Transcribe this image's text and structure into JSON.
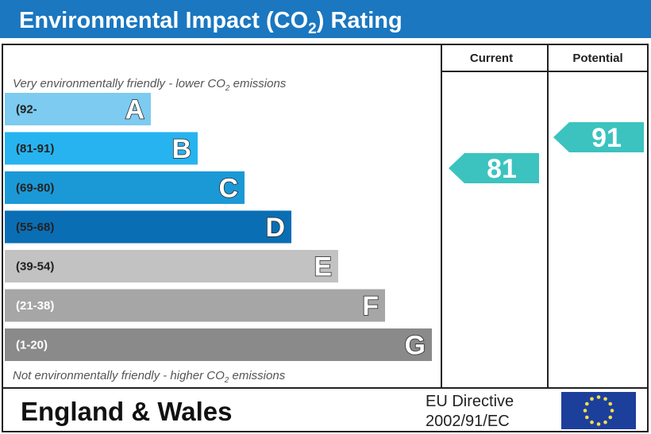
{
  "title": "Environmental Impact (CO",
  "title_sub": "2",
  "title_end": ") Rating",
  "columns": {
    "current": "Current",
    "potential": "Potential"
  },
  "top_note": {
    "pre": "Very environmentally friendly - lower CO",
    "sub": "2",
    "post": " emissions"
  },
  "bottom_note": {
    "pre": "Not environmentally friendly - higher CO",
    "sub": "2",
    "post": " emissions"
  },
  "footer": {
    "region": "England & Wales",
    "directive_line1": "EU Directive",
    "directive_line2": "2002/91/EC"
  },
  "chart_data": {
    "type": "bar",
    "bands": [
      {
        "letter": "A",
        "range": "(92-",
        "color": "#7dcbf0",
        "text_color": "#222"
      },
      {
        "letter": "B",
        "range": "(81-91)",
        "color": "#27b3f0",
        "text_color": "#222"
      },
      {
        "letter": "C",
        "range": "(69-80)",
        "color": "#1b99d6",
        "text_color": "#222"
      },
      {
        "letter": "D",
        "range": "(55-68)",
        "color": "#0a6eb4",
        "text_color": "#222"
      },
      {
        "letter": "E",
        "range": "(39-54)",
        "color": "#c2c2c2",
        "text_color": "#222"
      },
      {
        "letter": "F",
        "range": "(21-38)",
        "color": "#a6a6a6",
        "text_color": "#fff"
      },
      {
        "letter": "G",
        "range": "(1-20)",
        "color": "#8a8a8a",
        "text_color": "#fff"
      }
    ],
    "current": 81,
    "potential": 91,
    "arrow_color": "#3cc3bf"
  },
  "colors": {
    "header": "#1a77c0",
    "eu_flag": "#1d3f9c",
    "eu_stars": "#f4e04d"
  }
}
